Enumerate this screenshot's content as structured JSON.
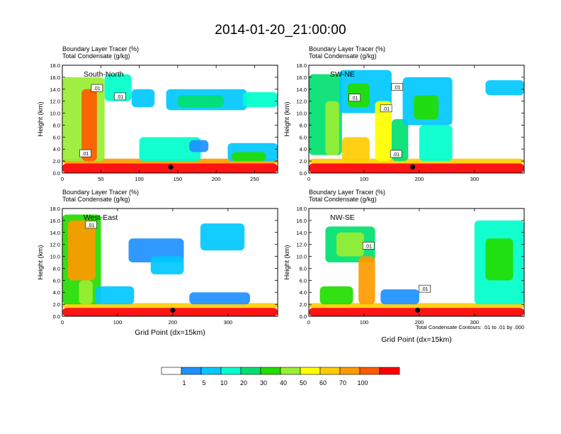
{
  "figure": {
    "title": "2014-01-20_21:00:00",
    "contour_note": "Total Condensate Contours: .01 to .01 by .000"
  },
  "colorbar": {
    "colors": [
      "#ffffff",
      "#1e90ff",
      "#00c8ff",
      "#00ffcc",
      "#00e070",
      "#22dd00",
      "#99ee33",
      "#ffff00",
      "#ffcc00",
      "#ff9a00",
      "#ff5a00",
      "#ff0000"
    ],
    "labels": [
      "1",
      "5",
      "10",
      "20",
      "30",
      "40",
      "50",
      "60",
      "70",
      "100"
    ]
  },
  "chart_data": [
    {
      "type": "heatmap",
      "title": "South-North",
      "left_title_line1": "Boundary Layer Tracer   (%)",
      "left_title_line2": "Total Condensate   (g/kg)",
      "xlabel": "",
      "ylabel": "Height (km)",
      "xlim": [
        0,
        280
      ],
      "ylim": [
        0,
        18
      ],
      "xticks": [
        "0",
        "50",
        "100",
        "150",
        "200",
        "250"
      ],
      "xtick_values": [
        0,
        50,
        100,
        150,
        200,
        250
      ],
      "yticks": [
        "0.0",
        "2.0",
        "4.0",
        "6.0",
        "8.0",
        "10.0",
        "12.0",
        "14.0",
        "16.0",
        "18.0"
      ],
      "contour_labels": [
        {
          "text": ".01",
          "x": 45,
          "y": 14.2
        },
        {
          "text": ".01",
          "x": 75,
          "y": 12.8
        },
        {
          "text": ".01",
          "x": 30,
          "y": 3.3
        }
      ],
      "marker": {
        "x": 141,
        "y": 1.0
      },
      "blobs": [
        {
          "x": [
            0,
            280
          ],
          "y": [
            0,
            1.6
          ],
          "level": 11
        },
        {
          "x": [
            0,
            280
          ],
          "y": [
            1.6,
            2.4
          ],
          "level": 9
        },
        {
          "x": [
            0,
            55
          ],
          "y": [
            2,
            16
          ],
          "level": 6
        },
        {
          "x": [
            25,
            45
          ],
          "y": [
            2,
            14
          ],
          "level": 10
        },
        {
          "x": [
            55,
            90
          ],
          "y": [
            12,
            16.5
          ],
          "level": 3
        },
        {
          "x": [
            90,
            120
          ],
          "y": [
            11,
            14
          ],
          "level": 2
        },
        {
          "x": [
            135,
            240
          ],
          "y": [
            10.5,
            14
          ],
          "level": 2
        },
        {
          "x": [
            150,
            210
          ],
          "y": [
            11,
            13
          ],
          "level": 4
        },
        {
          "x": [
            235,
            280
          ],
          "y": [
            11,
            13.5
          ],
          "level": 3
        },
        {
          "x": [
            100,
            180
          ],
          "y": [
            2,
            6
          ],
          "level": 3
        },
        {
          "x": [
            165,
            190
          ],
          "y": [
            3.5,
            5.5
          ],
          "level": 1
        },
        {
          "x": [
            215,
            280
          ],
          "y": [
            2,
            5
          ],
          "level": 2
        },
        {
          "x": [
            220,
            265
          ],
          "y": [
            2,
            3.5
          ],
          "level": 5
        }
      ]
    },
    {
      "type": "heatmap",
      "title": "SW-NE",
      "left_title_line1": "Boundary Layer Tracer   (%)",
      "left_title_line2": "Total Condensate   (g/kg)",
      "xlabel": "",
      "ylabel": "Height (km)",
      "xlim": [
        0,
        390
      ],
      "ylim": [
        0,
        18
      ],
      "xticks": [
        "0",
        "100",
        "200",
        "300"
      ],
      "xtick_values": [
        0,
        100,
        200,
        300
      ],
      "yticks": [
        "0.0",
        "2.0",
        "4.0",
        "6.0",
        "8.0",
        "10.0",
        "12.0",
        "14.0",
        "16.0",
        "18.0"
      ],
      "contour_labels": [
        {
          "text": ".01",
          "x": 160,
          "y": 14.4
        },
        {
          "text": ".01",
          "x": 83,
          "y": 12.6
        },
        {
          "text": ".01",
          "x": 140,
          "y": 10.8
        },
        {
          "text": ".01",
          "x": 158,
          "y": 3.2
        }
      ],
      "marker": {
        "x": 188,
        "y": 1.0
      },
      "blobs": [
        {
          "x": [
            0,
            390
          ],
          "y": [
            0,
            1.6
          ],
          "level": 11
        },
        {
          "x": [
            0,
            390
          ],
          "y": [
            1.6,
            2.4
          ],
          "level": 8
        },
        {
          "x": [
            0,
            60
          ],
          "y": [
            3,
            16.5
          ],
          "level": 4
        },
        {
          "x": [
            30,
            55
          ],
          "y": [
            3,
            12
          ],
          "level": 6
        },
        {
          "x": [
            55,
            150
          ],
          "y": [
            10,
            17.2
          ],
          "level": 2
        },
        {
          "x": [
            70,
            110
          ],
          "y": [
            11,
            15
          ],
          "level": 5
        },
        {
          "x": [
            120,
            150
          ],
          "y": [
            2,
            12
          ],
          "level": 7
        },
        {
          "x": [
            150,
            180
          ],
          "y": [
            2,
            9
          ],
          "level": 4
        },
        {
          "x": [
            170,
            260
          ],
          "y": [
            8,
            16
          ],
          "level": 2
        },
        {
          "x": [
            190,
            235
          ],
          "y": [
            9,
            13
          ],
          "level": 5
        },
        {
          "x": [
            320,
            390
          ],
          "y": [
            13,
            15.5
          ],
          "level": 2
        },
        {
          "x": [
            200,
            260
          ],
          "y": [
            2,
            8
          ],
          "level": 3
        },
        {
          "x": [
            60,
            110
          ],
          "y": [
            2,
            6
          ],
          "level": 8
        }
      ]
    },
    {
      "type": "heatmap",
      "title": "West-East",
      "left_title_line1": "Boundary Layer Tracer   (%)",
      "left_title_line2": "Total Condensate   (g/kg)",
      "xlabel": "Grid Point (dx=15km)",
      "ylabel": "Height (km)",
      "xlim": [
        0,
        390
      ],
      "ylim": [
        0,
        18
      ],
      "xticks": [
        "0",
        "100",
        "200",
        "300"
      ],
      "xtick_values": [
        0,
        100,
        200,
        300
      ],
      "yticks": [
        "0.0",
        "2.0",
        "4.0",
        "6.0",
        "8.0",
        "10.0",
        "12.0",
        "14.0",
        "16.0",
        "18.0"
      ],
      "contour_labels": [
        {
          "text": ".01",
          "x": 52,
          "y": 15.3
        }
      ],
      "marker": {
        "x": 200,
        "y": 1.0
      },
      "blobs": [
        {
          "x": [
            0,
            390
          ],
          "y": [
            0,
            1.4
          ],
          "level": 11
        },
        {
          "x": [
            0,
            390
          ],
          "y": [
            1.4,
            2.2
          ],
          "level": 8
        },
        {
          "x": [
            0,
            70
          ],
          "y": [
            2,
            17
          ],
          "level": 5
        },
        {
          "x": [
            10,
            60
          ],
          "y": [
            6,
            16
          ],
          "level": 9
        },
        {
          "x": [
            30,
            55
          ],
          "y": [
            2,
            6
          ],
          "level": 6
        },
        {
          "x": [
            120,
            220
          ],
          "y": [
            9,
            13
          ],
          "level": 1
        },
        {
          "x": [
            160,
            220
          ],
          "y": [
            7,
            10
          ],
          "level": 2
        },
        {
          "x": [
            250,
            330
          ],
          "y": [
            11,
            15.5
          ],
          "level": 2
        },
        {
          "x": [
            60,
            130
          ],
          "y": [
            2,
            5
          ],
          "level": 2
        },
        {
          "x": [
            230,
            340
          ],
          "y": [
            2,
            4
          ],
          "level": 1
        }
      ]
    },
    {
      "type": "heatmap",
      "title": "NW-SE",
      "left_title_line1": "Boundary Layer Tracer   (%)",
      "left_title_line2": "Total Condensate   (g/kg)",
      "xlabel": "Grid Point (dx=15km)",
      "ylabel": "Height (km)",
      "xlim": [
        0,
        390
      ],
      "ylim": [
        0,
        18
      ],
      "xticks": [
        "0",
        "100",
        "200",
        "300"
      ],
      "xtick_values": [
        0,
        100,
        200,
        300
      ],
      "yticks": [
        "0.0",
        "2.0",
        "4.0",
        "6.0",
        "8.0",
        "10.0",
        "12.0",
        "14.0",
        "16.0",
        "18.0"
      ],
      "contour_labels": [
        {
          "text": ".01",
          "x": 108,
          "y": 11.8
        },
        {
          "text": ".01",
          "x": 210,
          "y": 4.6
        }
      ],
      "marker": {
        "x": 197,
        "y": 1.0
      },
      "blobs": [
        {
          "x": [
            0,
            390
          ],
          "y": [
            0,
            1.4
          ],
          "level": 11
        },
        {
          "x": [
            0,
            390
          ],
          "y": [
            1.4,
            2.2
          ],
          "level": 8
        },
        {
          "x": [
            30,
            120
          ],
          "y": [
            9,
            15
          ],
          "level": 4
        },
        {
          "x": [
            50,
            100
          ],
          "y": [
            10,
            14
          ],
          "level": 6
        },
        {
          "x": [
            90,
            120
          ],
          "y": [
            2,
            10
          ],
          "level": 9
        },
        {
          "x": [
            20,
            80
          ],
          "y": [
            2,
            5
          ],
          "level": 5
        },
        {
          "x": [
            300,
            390
          ],
          "y": [
            2,
            16
          ],
          "level": 3
        },
        {
          "x": [
            320,
            370
          ],
          "y": [
            6,
            13
          ],
          "level": 5
        },
        {
          "x": [
            130,
            200
          ],
          "y": [
            2,
            4.5
          ],
          "level": 1
        }
      ]
    }
  ]
}
